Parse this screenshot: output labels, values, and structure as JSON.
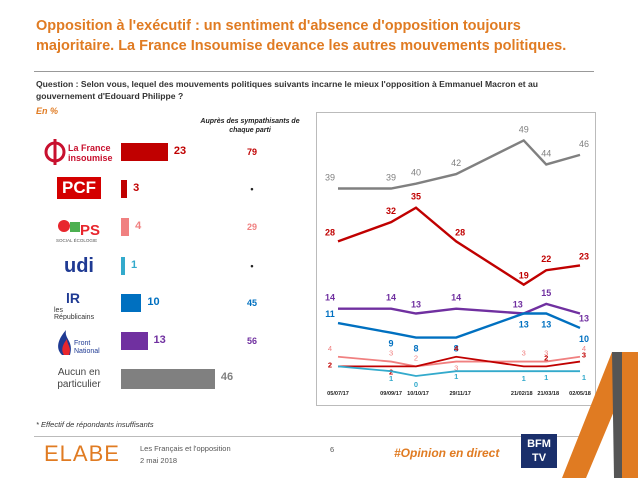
{
  "title_line1": "Opposition à l'exécutif : un sentiment d'absence d'opposition toujours",
  "title_line2": "majoritaire. La France Insoumise devance les autres mouvements politiques.",
  "question": "Question : Selon vous, lequel des mouvements politiques suivants incarne le mieux l'opposition à Emmanuel Macron et au gouvernement d'Edouard Philippe ?",
  "unit_label": "En %",
  "symp_header": "Auprès des sympathisants de chaque parti",
  "logos": {
    "lfi": "La France insoumise",
    "pcf": "PCF",
    "ps": "PS",
    "ps_sub": "SOCIAL ÉCOLOGIE",
    "udi": "udi",
    "lr_mark": "lR",
    "lr_text": "les Républicains",
    "fn_text": "Front National",
    "aucun": "Aucun en particulier"
  },
  "chart_data": [
    {
      "type": "bar",
      "categories": [
        "La France insoumise",
        "PCF",
        "PS",
        "udi",
        "Les Républicains",
        "Front National",
        "Aucun en particulier"
      ],
      "values": [
        23,
        3,
        4,
        1,
        10,
        13,
        46
      ],
      "value_labels": [
        "23",
        "3",
        "4",
        "1",
        "10",
        "13",
        "46"
      ],
      "sympathisants": [
        "79",
        "•",
        "29",
        "•",
        "45",
        "56",
        ""
      ],
      "colors": [
        "#c00000",
        "#c00000",
        "#f08080",
        "#33aacc",
        "#0070c0",
        "#7030a0",
        "#808080"
      ]
    },
    {
      "type": "line",
      "x": [
        "05/07/17",
        "09/09/17",
        "10/10/17",
        "29/11/17",
        "21/02/18",
        "21/03/18",
        "02/05/18"
      ],
      "x_positions_days": [
        0,
        66,
        97,
        147,
        231,
        259,
        301
      ],
      "series": [
        {
          "key": "aucun",
          "color": "#808080",
          "values": [
            39,
            39,
            40,
            42,
            49,
            44,
            46
          ],
          "labels": [
            "39",
            "39",
            "40",
            "42",
            "49",
            "44",
            "46"
          ]
        },
        {
          "key": "lfi",
          "color": "#c00000",
          "values": [
            28,
            32,
            35,
            28,
            19,
            22,
            23
          ],
          "labels": [
            "28",
            "32",
            "35",
            "28",
            "19",
            "22",
            "23"
          ]
        },
        {
          "key": "fn",
          "color": "#7030a0",
          "values": [
            14,
            14,
            13,
            14,
            13,
            15,
            13
          ],
          "labels": [
            "14",
            "14",
            "13",
            "14",
            "13",
            "15",
            "13"
          ]
        },
        {
          "key": "lr",
          "color": "#0070c0",
          "values": [
            11,
            9,
            8,
            8,
            13,
            13,
            10
          ],
          "labels": [
            "11",
            "9",
            "8",
            "8",
            "13",
            "13",
            "10"
          ]
        },
        {
          "key": "ps",
          "color": "#f08080",
          "values": [
            4,
            3,
            2,
            3,
            3,
            3,
            4
          ],
          "labels": [
            "4",
            "3",
            "2",
            "3",
            "3",
            "3",
            "4"
          ]
        },
        {
          "key": "pcf",
          "color": "#c00000",
          "values": [
            2,
            2,
            2,
            4,
            2,
            2,
            3
          ],
          "labels": [
            "2",
            "2",
            "",
            "4",
            "",
            "2",
            "3"
          ]
        },
        {
          "key": "udi",
          "color": "#33aacc",
          "values": [
            2,
            1,
            0,
            1,
            1,
            1,
            1
          ],
          "labels": [
            "",
            "1",
            "0",
            "1",
            "1",
            "1",
            "1"
          ]
        }
      ]
    }
  ],
  "note": "* Effectif de répondants insuffisants",
  "footer": {
    "brand": "ELABE",
    "source_line1": "Les Français et l'opposition",
    "source_line2": "2 mai 2018",
    "page": "6",
    "hashtag": "#Opinion en direct",
    "bfm": "BFM",
    "bfm_sub": "TV"
  }
}
